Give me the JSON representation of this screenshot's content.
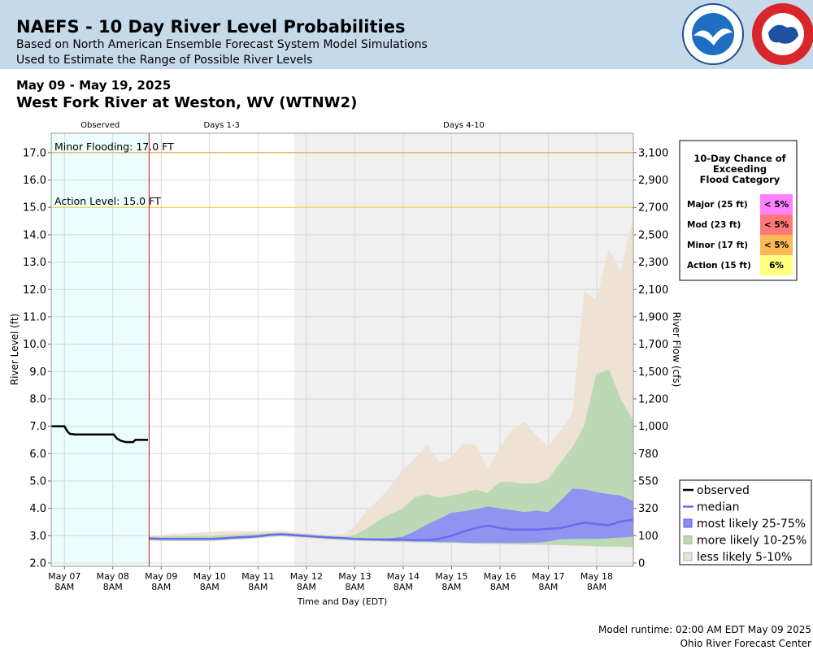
{
  "header": {
    "title": "NAEFS - 10 Day River Level Probabilities",
    "subtitles": [
      "Based on North American Ensemble Forecast System Model Simulations",
      "Used to Estimate the Range of Possible River Levels"
    ]
  },
  "chart_data": {
    "type": "probability-band",
    "subtitle": "May 09 - May 19, 2025",
    "title": "West Fork River at Weston, WV (WTNW2)",
    "ylabel": "River Level (ft)",
    "y2label": "River Flow (cfs)",
    "xlabel": "Time and Day (EDT)",
    "xlim": [
      7.06,
      19.09
    ],
    "ylim": [
      1.88,
      17.71
    ],
    "grid": true,
    "yticks": [
      {
        "value": 2,
        "label": "2.0"
      },
      {
        "value": 3,
        "label": "3.0"
      },
      {
        "value": 4,
        "label": "4.0"
      },
      {
        "value": 5,
        "label": "5.0"
      },
      {
        "value": 6,
        "label": "6.0"
      },
      {
        "value": 7,
        "label": "7.0"
      },
      {
        "value": 8,
        "label": "8.0"
      },
      {
        "value": 9,
        "label": "9.0"
      },
      {
        "value": 10,
        "label": "10.0"
      },
      {
        "value": 11,
        "label": "11.0"
      },
      {
        "value": 12,
        "label": "12.0"
      },
      {
        "value": 13,
        "label": "13.0"
      },
      {
        "value": 14,
        "label": "14.0"
      },
      {
        "value": 15,
        "label": "15.0"
      },
      {
        "value": 16,
        "label": "16.0"
      },
      {
        "value": 17,
        "label": "17.0"
      }
    ],
    "y2ticks": [
      0,
      100,
      320,
      550,
      780,
      {
        "value": 1000,
        "label": "1,000"
      },
      {
        "value": 1200,
        "label": "1,200"
      },
      {
        "value": 1500,
        "label": "1,500"
      },
      {
        "value": 1700,
        "label": "1,700"
      },
      {
        "value": 1900,
        "label": "1,900"
      },
      {
        "value": 2100,
        "label": "2,100"
      },
      {
        "value": 2300,
        "label": "2,300"
      },
      {
        "value": 2500,
        "label": "2,500"
      },
      {
        "value": 2700,
        "label": "2,700"
      },
      {
        "value": 2900,
        "label": "2,900"
      },
      {
        "value": 3100,
        "label": "3,100"
      }
    ],
    "xticks": [
      {
        "value": 7.333,
        "label": [
          "May 07",
          "8AM"
        ]
      },
      {
        "value": 8.333,
        "label": [
          "May 08",
          "8AM"
        ]
      },
      {
        "value": 9.333,
        "label": [
          "May 09",
          "8AM"
        ]
      },
      {
        "value": 10.333,
        "label": [
          "May 10",
          "8AM"
        ]
      },
      {
        "value": 11.333,
        "label": [
          "May 11",
          "8AM"
        ]
      },
      {
        "value": 12.333,
        "label": [
          "May 12",
          "8AM"
        ]
      },
      {
        "value": 13.333,
        "label": [
          "May 13",
          "8AM"
        ]
      },
      {
        "value": 14.333,
        "label": [
          "May 14",
          "8AM"
        ]
      },
      {
        "value": 15.333,
        "label": [
          "May 15",
          "8AM"
        ]
      },
      {
        "value": 16.333,
        "label": [
          "May 16",
          "8AM"
        ]
      },
      {
        "value": 17.333,
        "label": [
          "May 17",
          "8AM"
        ]
      },
      {
        "value": 18.333,
        "label": [
          "May 18",
          "8AM"
        ]
      }
    ],
    "periods": [
      {
        "label": "Observed",
        "start": 7.06,
        "end": 9.083,
        "color": "#ebfdfd"
      },
      {
        "label": "Days 1-3",
        "start": 9.083,
        "end": 12.083,
        "color": "#ffffff"
      },
      {
        "label": "Days 4-10",
        "start": 12.083,
        "end": 19.09,
        "color": "#f0f0f0"
      }
    ],
    "forecast_line_color": "#d01010",
    "thresholds": [
      {
        "label": "Minor Flooding: 17.0 FT",
        "value": 17,
        "color": "#f0a850"
      },
      {
        "label": "Action Level: 15.0 FT",
        "value": 15,
        "color": "#f0d850"
      }
    ],
    "x": [
      9.083,
      9.333,
      9.583,
      9.833,
      10.083,
      10.333,
      10.583,
      10.833,
      11.083,
      11.333,
      11.583,
      11.833,
      12.083,
      12.333,
      12.583,
      12.833,
      13.083,
      13.333,
      13.583,
      13.833,
      14.083,
      14.333,
      14.583,
      14.833,
      15.083,
      15.333,
      15.583,
      15.833,
      16.083,
      16.333,
      16.583,
      16.833,
      17.083,
      17.333,
      17.583,
      17.833,
      18.083,
      18.333,
      18.583,
      18.833,
      19.083
    ],
    "series": [
      {
        "name": "observed",
        "color": "#000000",
        "x": [
          7.06,
          7.33,
          7.4,
          7.45,
          7.55,
          8.35,
          8.42,
          8.5,
          8.6,
          8.75,
          8.8,
          9.06
        ],
        "values": [
          7.0,
          7.0,
          6.8,
          6.72,
          6.7,
          6.7,
          6.55,
          6.47,
          6.42,
          6.42,
          6.5,
          6.5
        ]
      },
      {
        "name": "median",
        "color": "#6a6af2",
        "values": [
          2.9,
          2.88,
          2.88,
          2.88,
          2.88,
          2.88,
          2.9,
          2.93,
          2.95,
          2.98,
          3.03,
          3.05,
          3.02,
          2.99,
          2.96,
          2.93,
          2.91,
          2.88,
          2.87,
          2.86,
          2.85,
          2.85,
          2.84,
          2.84,
          2.88,
          3.0,
          3.15,
          3.28,
          3.37,
          3.28,
          3.22,
          3.22,
          3.22,
          3.25,
          3.28,
          3.38,
          3.48,
          3.42,
          3.38,
          3.52,
          3.58
        ]
      },
      {
        "name": "most likely 25-75%",
        "color": "#8c8cf6",
        "low": [
          2.88,
          2.86,
          2.86,
          2.86,
          2.86,
          2.86,
          2.88,
          2.91,
          2.93,
          2.96,
          3.01,
          3.03,
          3.0,
          2.97,
          2.94,
          2.91,
          2.89,
          2.86,
          2.85,
          2.84,
          2.82,
          2.82,
          2.8,
          2.8,
          2.78,
          2.78,
          2.76,
          2.75,
          2.75,
          2.75,
          2.75,
          2.75,
          2.76,
          2.8,
          2.88,
          2.9,
          2.9,
          2.9,
          2.92,
          2.95,
          2.98
        ],
        "high": [
          2.92,
          2.9,
          2.9,
          2.9,
          2.9,
          2.9,
          2.92,
          2.95,
          2.97,
          3.0,
          3.05,
          3.07,
          3.04,
          3.01,
          2.98,
          2.95,
          2.93,
          2.9,
          2.89,
          2.88,
          2.9,
          2.95,
          3.15,
          3.4,
          3.6,
          3.82,
          3.88,
          3.95,
          4.05,
          3.98,
          3.92,
          3.85,
          3.9,
          3.85,
          4.25,
          4.7,
          4.68,
          4.58,
          4.5,
          4.45,
          4.25
        ]
      },
      {
        "name": "more likely 10-25%",
        "color": "#bcd9b6",
        "low": [
          2.85,
          2.83,
          2.83,
          2.83,
          2.83,
          2.83,
          2.85,
          2.88,
          2.9,
          2.93,
          2.98,
          3.0,
          2.97,
          2.94,
          2.91,
          2.88,
          2.86,
          2.83,
          2.82,
          2.81,
          2.79,
          2.79,
          2.77,
          2.77,
          2.76,
          2.76,
          2.74,
          2.73,
          2.72,
          2.72,
          2.71,
          2.7,
          2.7,
          2.68,
          2.68,
          2.66,
          2.65,
          2.63,
          2.62,
          2.62,
          2.6
        ],
        "high": [
          2.95,
          2.95,
          2.97,
          2.97,
          2.98,
          2.98,
          3.0,
          3.02,
          3.04,
          3.05,
          3.08,
          3.1,
          3.07,
          3.04,
          3.0,
          2.98,
          2.96,
          3.0,
          3.25,
          3.55,
          3.78,
          3.98,
          4.4,
          4.5,
          4.38,
          4.45,
          4.55,
          4.67,
          4.55,
          4.95,
          4.95,
          4.88,
          4.9,
          5.05,
          5.65,
          6.2,
          7.02,
          8.9,
          9.05,
          7.95,
          7.2
        ]
      },
      {
        "name": "less likely 5-10%",
        "color": "#ede2d3",
        "low": [
          2.83,
          2.81,
          2.81,
          2.81,
          2.81,
          2.81,
          2.83,
          2.86,
          2.88,
          2.91,
          2.96,
          2.98,
          2.95,
          2.92,
          2.89,
          2.86,
          2.84,
          2.81,
          2.8,
          2.79,
          2.77,
          2.77,
          2.75,
          2.75,
          2.74,
          2.74,
          2.72,
          2.71,
          2.7,
          2.7,
          2.69,
          2.68,
          2.68,
          2.66,
          2.66,
          2.64,
          2.63,
          2.61,
          2.6,
          2.6,
          2.58
        ],
        "high": [
          2.95,
          3.0,
          3.05,
          3.07,
          3.1,
          3.12,
          3.15,
          3.15,
          3.15,
          3.15,
          3.16,
          3.17,
          3.12,
          3.08,
          3.05,
          3.03,
          3.03,
          3.3,
          3.9,
          4.3,
          4.8,
          5.4,
          5.8,
          6.3,
          5.65,
          5.85,
          6.35,
          6.3,
          5.4,
          6.2,
          6.85,
          7.15,
          6.65,
          6.25,
          6.8,
          7.45,
          11.9,
          11.6,
          13.45,
          12.65,
          14.55
        ]
      }
    ],
    "exceedance": {
      "title": [
        "10-Day Chance of",
        "Exceeding",
        "Flood Category"
      ],
      "rows": [
        {
          "label": "Major (25 ft)",
          "value": "< 5%",
          "color": "#ff80ff"
        },
        {
          "label": "Mod (23 ft)",
          "value": "< 5%",
          "color": "#ff7878"
        },
        {
          "label": "Minor (17 ft)",
          "value": "< 5%",
          "color": "#ffb858"
        },
        {
          "label": "Action (15 ft)",
          "value": "6%",
          "color": "#ffff80"
        }
      ]
    }
  },
  "footer": [
    "Model runtime: 02:00 AM EDT May 09 2025",
    "Ohio River Forecast Center"
  ]
}
